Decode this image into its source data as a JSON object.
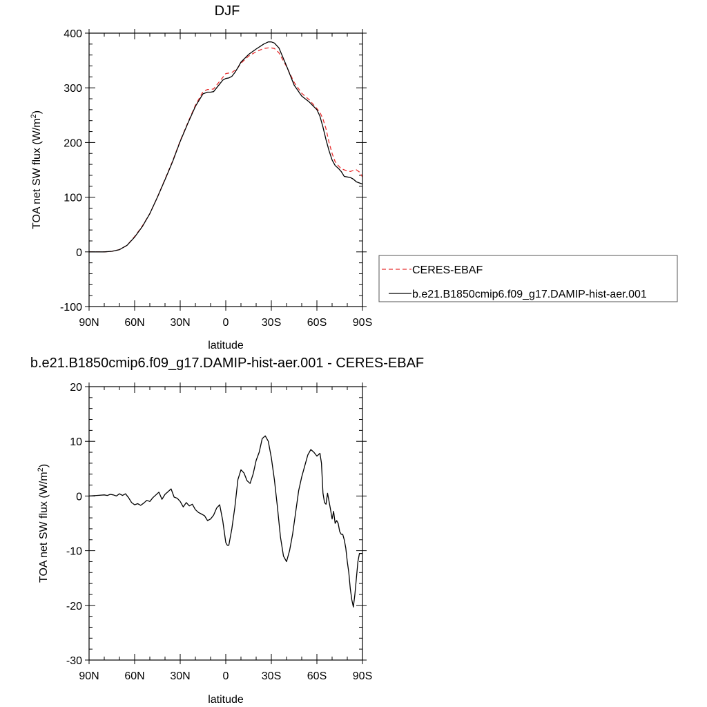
{
  "chart_data": [
    {
      "type": "line",
      "title": "DJF",
      "xlabel": "latitude",
      "ylabel": "TOA net SW flux (W/m²)",
      "ylabel_base": "TOA net SW flux (W/m",
      "ylabel_sup": "2",
      "ylabel_end": ")",
      "xlim": [
        -90,
        90
      ],
      "ylim": [
        -100,
        400
      ],
      "x_ticks": [
        -90,
        -60,
        -30,
        0,
        30,
        60,
        90
      ],
      "x_tick_labels": [
        "90N",
        "60N",
        "30N",
        "0",
        "30S",
        "60S",
        "90S"
      ],
      "y_ticks": [
        -100,
        0,
        100,
        200,
        300,
        400
      ],
      "y_tick_labels": [
        "-100",
        "0",
        "100",
        "200",
        "300",
        "400"
      ],
      "y_minor_step": 20,
      "x_minor_step": 10,
      "legend_position": "right",
      "series": [
        {
          "name": "CERES-EBAF",
          "color": "#e83030",
          "dash": "dashed",
          "x": [
            -90,
            -80,
            -75,
            -70,
            -65,
            -60,
            -55,
            -50,
            -45,
            -40,
            -35,
            -30,
            -25,
            -20,
            -15,
            -12,
            -10,
            -8,
            -6,
            -4,
            -2,
            0,
            2,
            4,
            6,
            8,
            10,
            15,
            20,
            25,
            28,
            30,
            32,
            35,
            40,
            45,
            50,
            55,
            60,
            62,
            64,
            66,
            68,
            70,
            72,
            74,
            76,
            78,
            80,
            82,
            84,
            86,
            88,
            90
          ],
          "y": [
            0,
            0,
            1,
            4,
            12,
            28,
            47,
            70,
            100,
            133,
            166,
            203,
            236,
            268,
            293,
            297,
            297,
            298,
            305,
            312,
            319,
            326,
            327,
            328,
            332,
            337,
            345,
            358,
            366,
            372,
            373,
            373,
            372,
            364,
            339,
            310,
            290,
            278,
            262,
            255,
            243,
            225,
            200,
            180,
            165,
            158,
            152,
            150,
            148,
            147,
            149,
            150,
            146,
            137
          ]
        },
        {
          "name": "b.e21.B1850cmip6.f09_g17.DAMIP-hist-aer.001",
          "color": "#000000",
          "dash": "solid",
          "x": [
            -90,
            -80,
            -75,
            -70,
            -65,
            -60,
            -55,
            -50,
            -45,
            -40,
            -35,
            -30,
            -25,
            -20,
            -15,
            -12,
            -10,
            -8,
            -6,
            -4,
            -2,
            0,
            2,
            4,
            6,
            8,
            10,
            15,
            20,
            25,
            28,
            30,
            32,
            35,
            40,
            45,
            50,
            55,
            60,
            62,
            64,
            66,
            68,
            70,
            72,
            74,
            76,
            78,
            80,
            82,
            84,
            86,
            88,
            90
          ],
          "y": [
            0,
            0,
            1,
            4,
            12,
            27,
            46,
            70,
            100,
            132,
            165,
            202,
            235,
            266,
            289,
            292,
            292,
            293,
            300,
            307,
            314,
            317,
            318,
            321,
            328,
            337,
            347,
            361,
            371,
            380,
            384,
            384,
            382,
            373,
            340,
            305,
            285,
            274,
            260,
            248,
            228,
            205,
            185,
            168,
            158,
            153,
            147,
            138,
            137,
            136,
            133,
            128,
            126,
            124
          ]
        }
      ]
    },
    {
      "type": "line",
      "title": "b.e21.B1850cmip6.f09_g17.DAMIP-hist-aer.001 - CERES-EBAF",
      "xlabel": "latitude",
      "ylabel": "TOA net SW flux (W/m²)",
      "ylabel_base": "TOA net SW flux (W/m",
      "ylabel_sup": "2",
      "ylabel_end": ")",
      "xlim": [
        -90,
        90
      ],
      "ylim": [
        -30,
        20
      ],
      "x_ticks": [
        -90,
        -60,
        -30,
        0,
        30,
        60,
        90
      ],
      "x_tick_labels": [
        "90N",
        "60N",
        "30N",
        "0",
        "30S",
        "60S",
        "90S"
      ],
      "y_ticks": [
        -30,
        -20,
        -10,
        0,
        10,
        20
      ],
      "y_tick_labels": [
        "-30",
        "-20",
        "-10",
        "0",
        "10",
        "20"
      ],
      "y_minor_step": 2,
      "x_minor_step": 10,
      "series": [
        {
          "name": "",
          "color": "#000000",
          "dash": "solid",
          "x": [
            -90,
            -85,
            -80,
            -78,
            -76,
            -74,
            -72,
            -70,
            -68,
            -66,
            -64,
            -62,
            -60,
            -58,
            -56,
            -54,
            -52,
            -50,
            -48,
            -46,
            -44,
            -42,
            -40,
            -38,
            -36,
            -34,
            -32,
            -30,
            -28,
            -26,
            -24,
            -22,
            -20,
            -18,
            -16,
            -14,
            -12,
            -10,
            -8,
            -6,
            -4,
            -2,
            0,
            1,
            2,
            4,
            6,
            8,
            10,
            12,
            14,
            16,
            18,
            20,
            22,
            24,
            26,
            28,
            30,
            32,
            34,
            36,
            38,
            40,
            42,
            44,
            46,
            48,
            50,
            52,
            54,
            56,
            58,
            60,
            62,
            63,
            64,
            65,
            66,
            67,
            68,
            69,
            70,
            71,
            72,
            73,
            74,
            75,
            76,
            77,
            78,
            79,
            80,
            81,
            82,
            83,
            84,
            85,
            86,
            87,
            88,
            89,
            90
          ],
          "y": [
            0.0,
            0.1,
            0.2,
            0.1,
            0.3,
            0.2,
            0.0,
            0.4,
            0.1,
            0.4,
            -0.3,
            -1.2,
            -1.6,
            -1.4,
            -1.7,
            -1.3,
            -0.8,
            -1.0,
            -0.3,
            0.2,
            0.7,
            -0.6,
            0.3,
            0.8,
            1.3,
            -0.2,
            -0.4,
            -1.0,
            -2.0,
            -1.2,
            -1.8,
            -1.5,
            -2.5,
            -3.0,
            -3.3,
            -3.6,
            -4.5,
            -4.2,
            -3.5,
            -2.2,
            -1.6,
            -4.5,
            -8.5,
            -9.0,
            -9.0,
            -6.0,
            -2.0,
            3.0,
            4.8,
            4.2,
            2.8,
            2.3,
            4.0,
            6.5,
            8.0,
            10.5,
            11.0,
            10.0,
            7.0,
            3.0,
            -2.0,
            -7.5,
            -11.0,
            -12.0,
            -10.0,
            -7.0,
            -3.0,
            1.0,
            3.5,
            5.5,
            7.5,
            8.5,
            8.0,
            7.3,
            7.8,
            6.0,
            0.5,
            -1.2,
            -1.5,
            0.5,
            -1.0,
            -2.5,
            -4.2,
            -2.8,
            -5.0,
            -4.5,
            -5.0,
            -6.5,
            -7.0,
            -7.0,
            -8.0,
            -9.5,
            -12.0,
            -14.0,
            -17.0,
            -19.0,
            -20.3,
            -18.0,
            -15.0,
            -12.0,
            -10.5,
            -10.5,
            -10.5
          ]
        }
      ]
    }
  ]
}
